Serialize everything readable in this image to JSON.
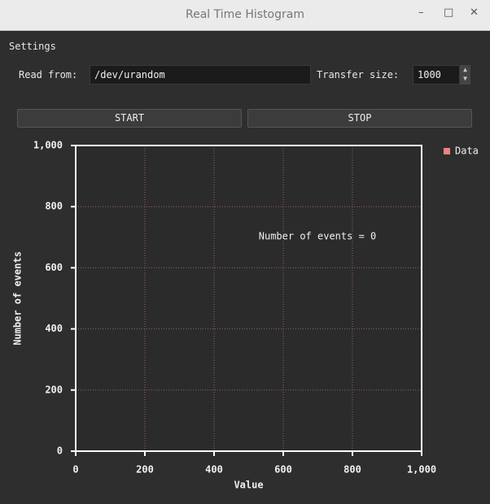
{
  "window": {
    "title": "Real Time Histogram"
  },
  "settings": {
    "heading": "Settings",
    "read_from_label": "Read from:",
    "read_from_value": "/dev/urandom",
    "transfer_size_label": "Transfer size:",
    "transfer_size_value": 1000
  },
  "buttons": [
    "START",
    "STOP"
  ],
  "chart_data": {
    "type": "histogram",
    "xlabel": "Value",
    "ylabel": "Number of events",
    "annotation": "Number of events = 0",
    "series": [
      {
        "name": "Data",
        "color": "#f08080",
        "values": []
      }
    ],
    "xlim": [
      0,
      1000
    ],
    "ylim": [
      0,
      1000
    ],
    "xticks": [
      0,
      200,
      400,
      600,
      800,
      {
        "value": 1000,
        "label": "1,000"
      }
    ],
    "yticks": [
      0,
      200,
      400,
      600,
      800,
      {
        "value": 1000,
        "label": "1,000"
      }
    ],
    "grid": true,
    "legend": "outside-upper-right"
  }
}
